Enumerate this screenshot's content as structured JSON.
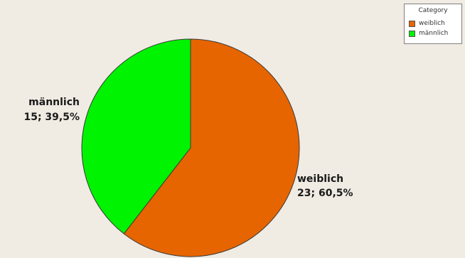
{
  "chart_data": {
    "type": "pie",
    "legend": {
      "title": "Category",
      "placement": "top-right",
      "entries": [
        "weiblich",
        "männlich"
      ]
    },
    "slices": [
      {
        "name": "weiblich",
        "count": 23,
        "percent": 60.5,
        "count_label": "23; 60,5%",
        "color": "#e66500"
      },
      {
        "name": "männlich",
        "count": 15,
        "percent": 39.5,
        "count_label": "15; 39,5%",
        "color": "#00f300"
      }
    ]
  }
}
